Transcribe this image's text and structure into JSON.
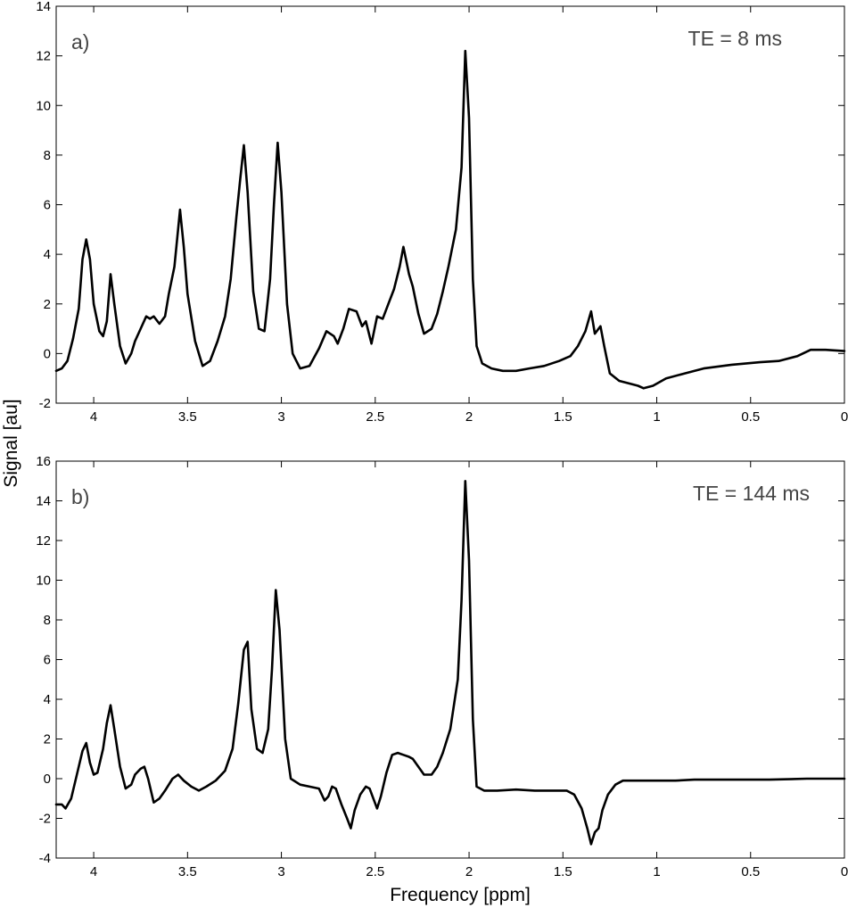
{
  "figure": {
    "ylabel": "Signal [au]",
    "xlabel": "Frequency [ppm]"
  },
  "chart_data": [
    {
      "type": "line",
      "panel_label": "a)",
      "annotation": "TE = 8 ms",
      "xlim": [
        4.2,
        0
      ],
      "xaxis_reversed": true,
      "ylim": [
        -2,
        14
      ],
      "xticks": [
        "4",
        "3.5",
        "3",
        "2.5",
        "2",
        "1.5",
        "1",
        "0.5",
        "0"
      ],
      "yticks": [
        "-2",
        "0",
        "2",
        "4",
        "6",
        "8",
        "10",
        "12",
        "14"
      ],
      "grid": false,
      "legend": "none",
      "color": "#000000",
      "series": [
        {
          "points": [
            [
              4.2,
              -0.7
            ],
            [
              4.17,
              -0.6
            ],
            [
              4.14,
              -0.3
            ],
            [
              4.11,
              0.6
            ],
            [
              4.08,
              1.8
            ],
            [
              4.06,
              3.8
            ],
            [
              4.04,
              4.6
            ],
            [
              4.02,
              3.8
            ],
            [
              4.0,
              2.0
            ],
            [
              3.97,
              0.9
            ],
            [
              3.95,
              0.7
            ],
            [
              3.93,
              1.3
            ],
            [
              3.91,
              3.2
            ],
            [
              3.89,
              2.0
            ],
            [
              3.86,
              0.3
            ],
            [
              3.83,
              -0.4
            ],
            [
              3.8,
              0.0
            ],
            [
              3.78,
              0.5
            ],
            [
              3.75,
              1.0
            ],
            [
              3.72,
              1.5
            ],
            [
              3.7,
              1.4
            ],
            [
              3.68,
              1.5
            ],
            [
              3.65,
              1.2
            ],
            [
              3.62,
              1.5
            ],
            [
              3.6,
              2.4
            ],
            [
              3.57,
              3.5
            ],
            [
              3.54,
              5.8
            ],
            [
              3.52,
              4.3
            ],
            [
              3.5,
              2.4
            ],
            [
              3.46,
              0.5
            ],
            [
              3.42,
              -0.5
            ],
            [
              3.38,
              -0.3
            ],
            [
              3.34,
              0.5
            ],
            [
              3.3,
              1.5
            ],
            [
              3.27,
              3.0
            ],
            [
              3.24,
              5.5
            ],
            [
              3.22,
              7.0
            ],
            [
              3.2,
              8.4
            ],
            [
              3.18,
              6.5
            ],
            [
              3.15,
              2.5
            ],
            [
              3.12,
              1.0
            ],
            [
              3.09,
              0.9
            ],
            [
              3.06,
              3.0
            ],
            [
              3.04,
              6.0
            ],
            [
              3.02,
              8.5
            ],
            [
              3.0,
              6.5
            ],
            [
              2.97,
              2.0
            ],
            [
              2.94,
              0.0
            ],
            [
              2.9,
              -0.6
            ],
            [
              2.85,
              -0.5
            ],
            [
              2.8,
              0.2
            ],
            [
              2.76,
              0.9
            ],
            [
              2.72,
              0.7
            ],
            [
              2.7,
              0.4
            ],
            [
              2.67,
              1.0
            ],
            [
              2.64,
              1.8
            ],
            [
              2.6,
              1.7
            ],
            [
              2.57,
              1.1
            ],
            [
              2.55,
              1.3
            ],
            [
              2.52,
              0.4
            ],
            [
              2.49,
              1.5
            ],
            [
              2.46,
              1.4
            ],
            [
              2.43,
              2.0
            ],
            [
              2.4,
              2.6
            ],
            [
              2.37,
              3.5
            ],
            [
              2.35,
              4.3
            ],
            [
              2.32,
              3.2
            ],
            [
              2.3,
              2.7
            ],
            [
              2.27,
              1.6
            ],
            [
              2.24,
              0.8
            ],
            [
              2.2,
              1.0
            ],
            [
              2.17,
              1.6
            ],
            [
              2.14,
              2.5
            ],
            [
              2.11,
              3.5
            ],
            [
              2.07,
              5.0
            ],
            [
              2.04,
              7.5
            ],
            [
              2.02,
              12.2
            ],
            [
              2.0,
              9.5
            ],
            [
              1.98,
              3.0
            ],
            [
              1.96,
              0.3
            ],
            [
              1.93,
              -0.4
            ],
            [
              1.88,
              -0.6
            ],
            [
              1.82,
              -0.7
            ],
            [
              1.75,
              -0.7
            ],
            [
              1.68,
              -0.6
            ],
            [
              1.6,
              -0.5
            ],
            [
              1.52,
              -0.3
            ],
            [
              1.46,
              -0.1
            ],
            [
              1.42,
              0.3
            ],
            [
              1.38,
              0.9
            ],
            [
              1.35,
              1.7
            ],
            [
              1.33,
              0.8
            ],
            [
              1.3,
              1.1
            ],
            [
              1.28,
              0.3
            ],
            [
              1.25,
              -0.8
            ],
            [
              1.2,
              -1.1
            ],
            [
              1.15,
              -1.2
            ],
            [
              1.1,
              -1.3
            ],
            [
              1.07,
              -1.4
            ],
            [
              1.02,
              -1.3
            ],
            [
              0.95,
              -1.0
            ],
            [
              0.85,
              -0.8
            ],
            [
              0.75,
              -0.6
            ],
            [
              0.6,
              -0.45
            ],
            [
              0.45,
              -0.35
            ],
            [
              0.35,
              -0.3
            ],
            [
              0.25,
              -0.1
            ],
            [
              0.18,
              0.15
            ],
            [
              0.1,
              0.15
            ],
            [
              0.0,
              0.1
            ]
          ]
        }
      ]
    },
    {
      "type": "line",
      "panel_label": "b)",
      "annotation": "TE = 144 ms",
      "xlim": [
        4.2,
        0
      ],
      "xaxis_reversed": true,
      "ylim": [
        -4,
        16
      ],
      "xticks": [
        "4",
        "3.5",
        "3",
        "2.5",
        "2",
        "1.5",
        "1",
        "0.5",
        "0"
      ],
      "yticks": [
        "-4",
        "-2",
        "0",
        "2",
        "4",
        "6",
        "8",
        "10",
        "12",
        "14",
        "16"
      ],
      "grid": false,
      "legend": "none",
      "color": "#000000",
      "series": [
        {
          "points": [
            [
              4.2,
              -1.3
            ],
            [
              4.17,
              -1.3
            ],
            [
              4.15,
              -1.5
            ],
            [
              4.12,
              -1.0
            ],
            [
              4.09,
              0.2
            ],
            [
              4.06,
              1.4
            ],
            [
              4.04,
              1.8
            ],
            [
              4.02,
              0.8
            ],
            [
              4.0,
              0.2
            ],
            [
              3.98,
              0.3
            ],
            [
              3.95,
              1.5
            ],
            [
              3.93,
              2.8
            ],
            [
              3.91,
              3.7
            ],
            [
              3.89,
              2.5
            ],
            [
              3.86,
              0.6
            ],
            [
              3.83,
              -0.5
            ],
            [
              3.8,
              -0.3
            ],
            [
              3.78,
              0.2
            ],
            [
              3.75,
              0.5
            ],
            [
              3.73,
              0.6
            ],
            [
              3.71,
              0.0
            ],
            [
              3.68,
              -1.2
            ],
            [
              3.65,
              -1.0
            ],
            [
              3.62,
              -0.6
            ],
            [
              3.58,
              0.0
            ],
            [
              3.55,
              0.2
            ],
            [
              3.52,
              -0.1
            ],
            [
              3.48,
              -0.4
            ],
            [
              3.44,
              -0.6
            ],
            [
              3.4,
              -0.4
            ],
            [
              3.35,
              -0.1
            ],
            [
              3.3,
              0.4
            ],
            [
              3.26,
              1.5
            ],
            [
              3.23,
              3.8
            ],
            [
              3.2,
              6.5
            ],
            [
              3.18,
              6.9
            ],
            [
              3.16,
              3.5
            ],
            [
              3.13,
              1.5
            ],
            [
              3.1,
              1.3
            ],
            [
              3.07,
              2.5
            ],
            [
              3.05,
              5.5
            ],
            [
              3.03,
              9.5
            ],
            [
              3.01,
              7.5
            ],
            [
              2.98,
              2.0
            ],
            [
              2.95,
              0.0
            ],
            [
              2.9,
              -0.3
            ],
            [
              2.85,
              -0.4
            ],
            [
              2.8,
              -0.5
            ],
            [
              2.77,
              -1.1
            ],
            [
              2.75,
              -0.9
            ],
            [
              2.73,
              -0.4
            ],
            [
              2.71,
              -0.5
            ],
            [
              2.68,
              -1.3
            ],
            [
              2.65,
              -2.0
            ],
            [
              2.63,
              -2.5
            ],
            [
              2.61,
              -1.6
            ],
            [
              2.58,
              -0.8
            ],
            [
              2.55,
              -0.4
            ],
            [
              2.53,
              -0.5
            ],
            [
              2.51,
              -1.0
            ],
            [
              2.49,
              -1.5
            ],
            [
              2.47,
              -0.9
            ],
            [
              2.44,
              0.3
            ],
            [
              2.41,
              1.2
            ],
            [
              2.38,
              1.3
            ],
            [
              2.35,
              1.2
            ],
            [
              2.32,
              1.1
            ],
            [
              2.3,
              1.0
            ],
            [
              2.27,
              0.6
            ],
            [
              2.24,
              0.2
            ],
            [
              2.2,
              0.2
            ],
            [
              2.17,
              0.6
            ],
            [
              2.14,
              1.3
            ],
            [
              2.1,
              2.5
            ],
            [
              2.06,
              5.0
            ],
            [
              2.04,
              9.0
            ],
            [
              2.02,
              15.0
            ],
            [
              2.0,
              11.0
            ],
            [
              1.98,
              3.0
            ],
            [
              1.96,
              -0.4
            ],
            [
              1.92,
              -0.6
            ],
            [
              1.85,
              -0.6
            ],
            [
              1.75,
              -0.55
            ],
            [
              1.65,
              -0.6
            ],
            [
              1.55,
              -0.6
            ],
            [
              1.48,
              -0.6
            ],
            [
              1.44,
              -0.8
            ],
            [
              1.4,
              -1.5
            ],
            [
              1.37,
              -2.5
            ],
            [
              1.35,
              -3.3
            ],
            [
              1.33,
              -2.7
            ],
            [
              1.31,
              -2.5
            ],
            [
              1.29,
              -1.6
            ],
            [
              1.26,
              -0.8
            ],
            [
              1.22,
              -0.3
            ],
            [
              1.18,
              -0.1
            ],
            [
              1.1,
              -0.1
            ],
            [
              1.0,
              -0.1
            ],
            [
              0.9,
              -0.1
            ],
            [
              0.8,
              -0.05
            ],
            [
              0.6,
              -0.05
            ],
            [
              0.4,
              -0.05
            ],
            [
              0.2,
              0.0
            ],
            [
              0.0,
              0.0
            ]
          ]
        }
      ]
    }
  ]
}
